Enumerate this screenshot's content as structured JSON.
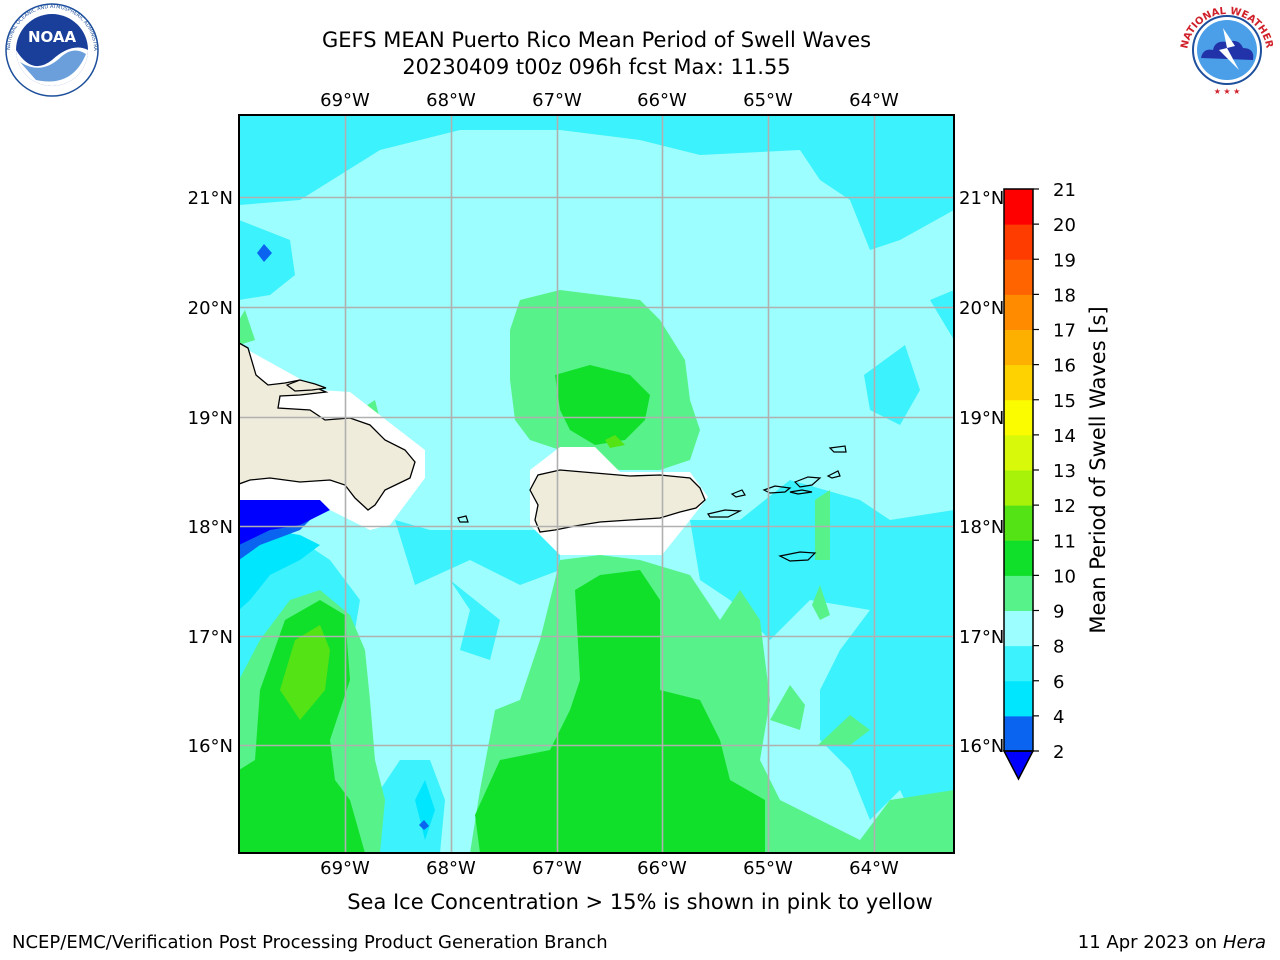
{
  "header": {
    "title_line1": "GEFS MEAN Puerto Rico Mean Period of Swell Waves",
    "title_line2": "20230409 t00z 096h fcst   Max: 11.55"
  },
  "logos": {
    "left": "NOAA",
    "left_ring_text": "NATIONAL OCEANIC AND ATMOSPHERIC ADMINISTRATION · U.S. DEPARTMENT OF COMMERCE",
    "right_ring_text": "NATIONAL WEATHER SERVICE"
  },
  "map": {
    "lon_labels": [
      "69°W",
      "68°W",
      "67°W",
      "66°W",
      "65°W",
      "64°W"
    ],
    "lat_labels": [
      "21°N",
      "20°N",
      "19°N",
      "18°N",
      "17°N",
      "16°N"
    ],
    "lon_range": [
      -70.0,
      -63.25
    ],
    "lat_range": [
      15.0,
      21.75
    ],
    "islands": [
      "Hispaniola",
      "Puerto Rico",
      "Virgin Islands"
    ],
    "colors": {
      "land": "#efecdc",
      "gridline": "#b0b0b0"
    }
  },
  "colorbar": {
    "label": "Mean Period of Swell Waves [s]",
    "ticks": [
      "21",
      "20",
      "19",
      "18",
      "17",
      "16",
      "15",
      "14",
      "13",
      "12",
      "11",
      "10",
      "9",
      "8",
      "6",
      "4",
      "2"
    ],
    "colors_bottom_to_top": [
      "#0a64f0",
      "#00e6ff",
      "#3cf2fc",
      "#9cfefe",
      "#57f38a",
      "#11e02a",
      "#54e315",
      "#a8f20a",
      "#d8f90a",
      "#fcfc00",
      "#fdd200",
      "#feb000",
      "#ff8c00",
      "#ff6400",
      "#ff3c00",
      "#ff0000"
    ],
    "extend_color": "#0000ff"
  },
  "footer": {
    "note": "Sea Ice Concentration > 15% is shown in pink to yellow",
    "left": "NCEP/EMC/Verification Post Processing Product Generation Branch",
    "right_date": "11 Apr 2023 on ",
    "right_host": "Hera"
  }
}
